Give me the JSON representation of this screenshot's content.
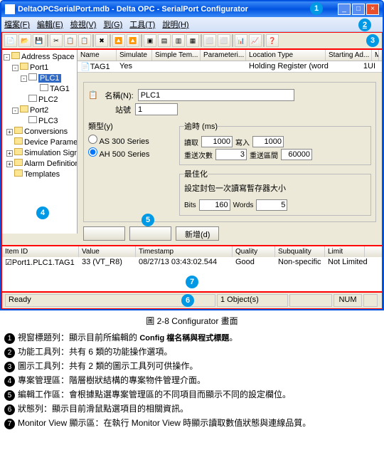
{
  "window": {
    "title": "DeltaOPCSerialPort.mdb - Delta OPC - SerialPort Configurator"
  },
  "menu": {
    "items": [
      "檔案(F)",
      "編輯(E)",
      "檢視(V)",
      "到(G)",
      "工具(T)",
      "說明(H)"
    ]
  },
  "tree": {
    "root": "Address Space",
    "nodes": [
      {
        "label": "Port1",
        "indent": 12,
        "pm": "-",
        "ic": "folder"
      },
      {
        "label": "PLC1",
        "indent": 24,
        "pm": "-",
        "ic": "doc",
        "hl": true
      },
      {
        "label": "TAG1",
        "indent": 40,
        "pm": "",
        "ic": "doc"
      },
      {
        "label": "PLC2",
        "indent": 24,
        "pm": "",
        "ic": "doc"
      },
      {
        "label": "Port2",
        "indent": 12,
        "pm": "-",
        "ic": "folder"
      },
      {
        "label": "PLC3",
        "indent": 24,
        "pm": "",
        "ic": "doc"
      },
      {
        "label": "Conversions",
        "indent": 4,
        "pm": "+",
        "ic": "folder"
      },
      {
        "label": "Device Parameters",
        "indent": 4,
        "pm": "",
        "ic": "folder"
      },
      {
        "label": "Simulation Signals",
        "indent": 4,
        "pm": "+",
        "ic": "folder"
      },
      {
        "label": "Alarm Definitions",
        "indent": 4,
        "pm": "+",
        "ic": "folder"
      },
      {
        "label": "Templates",
        "indent": 4,
        "pm": "",
        "ic": "folder"
      }
    ]
  },
  "listhead": [
    "Name",
    "Simulate",
    "Simple Tem...",
    "Parameteri...",
    "Location Type",
    "Starting Ad...",
    "M"
  ],
  "listhead_w": [
    55,
    50,
    68,
    64,
    112,
    65,
    10
  ],
  "listrow": {
    "name": "TAG1",
    "simulate": "Yes",
    "loc": "Holding Register (word, ...",
    "ad": "1",
    "m": "UI"
  },
  "form": {
    "name_label": "名稱(N):",
    "name_value": "PLC1",
    "station_label": "站號",
    "station_value": "1",
    "type_label": "類型(y)",
    "radio1": "AS 300 Series",
    "radio2": "AH 500 Series",
    "timeout_legend": "逾時 (ms)",
    "read_label": "讀取",
    "read_value": "1000",
    "write_label": "寫入",
    "write_value": "1000",
    "retry_label": "重送次數",
    "retry_value": "3",
    "interval_label": "重送區間",
    "interval_value": "60000",
    "opt_legend": "最佳化",
    "opt_text": "設定封包一次讀寫暫存器大小",
    "bits_label": "Bits",
    "bits_value": "160",
    "words_label": "Words",
    "words_value": "5",
    "btn_new": "新增(d)"
  },
  "grid": {
    "head": [
      "Item ID",
      "Value",
      "Timestamp",
      "Quality",
      "Subquality",
      "Limit"
    ],
    "head_w": [
      108,
      80,
      136,
      60,
      70,
      56
    ],
    "row": {
      "id": "Port1.PLC1.TAG1",
      "value": "33 (VT_R8)",
      "ts": "08/27/13 03:43:02.544",
      "quality": "Good",
      "sub": "Non-specific",
      "limit": "Not Limited"
    }
  },
  "status": {
    "ready": "Ready",
    "objects": "1 Object(s)",
    "num": "NUM"
  },
  "caption": "圖 2-8 Configurator 畫面",
  "legends": [
    {
      "n": "1",
      "t1": "視窗標題列：顯示目前所編輯的 ",
      "b": "Config 檔名稱與程式標題",
      "t2": "。"
    },
    {
      "n": "2",
      "t1": "功能工具列：共有 6 類的功能操作選項。",
      "b": "",
      "t2": ""
    },
    {
      "n": "3",
      "t1": "圖示工具列：共有 2 類的圖示工具列可供操作。",
      "b": "",
      "t2": ""
    },
    {
      "n": "4",
      "t1": "專案管理區：階層樹狀結構的專案物件管理介面。",
      "b": "",
      "t2": ""
    },
    {
      "n": "5",
      "t1": "編輯工作區：會根據點選專案管理區的不同項目而顯示不同的設定欄位。",
      "b": "",
      "t2": ""
    },
    {
      "n": "6",
      "t1": "狀態列：顯示目前滑鼠點選項目的相關資訊。",
      "b": "",
      "t2": ""
    },
    {
      "n": "7",
      "t1": "Monitor View 顯示區：在執行 Monitor View 時顯示讀取數值狀態與連線品質。",
      "b": "",
      "t2": ""
    }
  ]
}
